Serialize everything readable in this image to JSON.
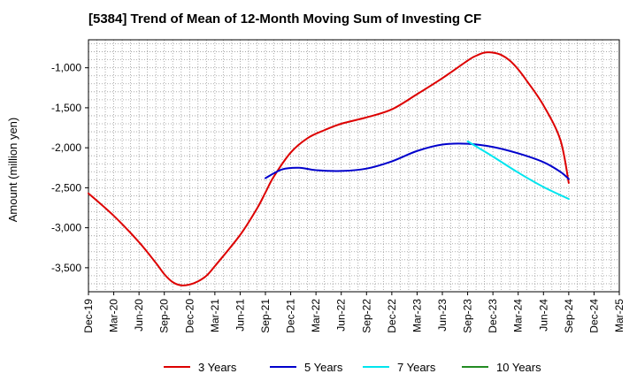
{
  "chart_data": {
    "type": "line",
    "title": "[5384]  Trend of Mean of 12-Month Moving Sum of Investing CF",
    "xlabel": "",
    "ylabel": "Amount (million yen)",
    "ylim": [
      -3800,
      -650
    ],
    "yticks": [
      -1000,
      -1500,
      -2000,
      -2500,
      -3000,
      -3500
    ],
    "ytick_labels": [
      "-1,000",
      "-1,500",
      "-2,000",
      "-2,500",
      "-3,000",
      "-3,500"
    ],
    "x_index_range": [
      0,
      63
    ],
    "xticks": [
      0,
      3,
      6,
      9,
      12,
      15,
      18,
      21,
      24,
      27,
      30,
      33,
      36,
      39,
      42,
      45,
      48,
      51,
      54,
      57,
      60,
      63
    ],
    "xtick_labels": [
      "Dec-19",
      "Mar-20",
      "Jun-20",
      "Sep-20",
      "Dec-20",
      "Mar-21",
      "Jun-21",
      "Sep-21",
      "Dec-21",
      "Mar-22",
      "Jun-22",
      "Sep-22",
      "Dec-22",
      "Mar-23",
      "Jun-23",
      "Sep-23",
      "Dec-23",
      "Mar-24",
      "Jun-24",
      "Sep-24",
      "Dec-24",
      "Mar-25"
    ],
    "grid": true,
    "legend_position": "bottom",
    "series": [
      {
        "name": "3 Years",
        "color": "#dd0000",
        "x": [
          0,
          3,
          6,
          8,
          9,
          10,
          11,
          12,
          13,
          14,
          15,
          18,
          20,
          21,
          22,
          24,
          26,
          28,
          30,
          33,
          36,
          39,
          42,
          45,
          46,
          47,
          48,
          49,
          50,
          51,
          52,
          54,
          56,
          57
        ],
        "values": [
          -2570,
          -2850,
          -3180,
          -3440,
          -3580,
          -3680,
          -3720,
          -3710,
          -3670,
          -3600,
          -3480,
          -3090,
          -2760,
          -2560,
          -2360,
          -2060,
          -1880,
          -1780,
          -1700,
          -1620,
          -1520,
          -1330,
          -1130,
          -910,
          -850,
          -810,
          -810,
          -840,
          -910,
          -1020,
          -1160,
          -1470,
          -1900,
          -2440
        ]
      },
      {
        "name": "5 Years",
        "color": "#0000cc",
        "x": [
          21,
          23,
          25,
          27,
          30,
          33,
          36,
          39,
          42,
          45,
          48,
          51,
          54,
          56,
          57
        ],
        "values": [
          -2380,
          -2270,
          -2250,
          -2280,
          -2290,
          -2260,
          -2170,
          -2040,
          -1960,
          -1950,
          -1990,
          -2070,
          -2180,
          -2300,
          -2390
        ]
      },
      {
        "name": "7 Years",
        "color": "#00e5ee",
        "x": [
          45,
          48,
          51,
          54,
          57
        ],
        "values": [
          -1920,
          -2110,
          -2310,
          -2490,
          -2640
        ]
      },
      {
        "name": "10 Years",
        "color": "#228b22",
        "x": [],
        "values": []
      }
    ]
  }
}
